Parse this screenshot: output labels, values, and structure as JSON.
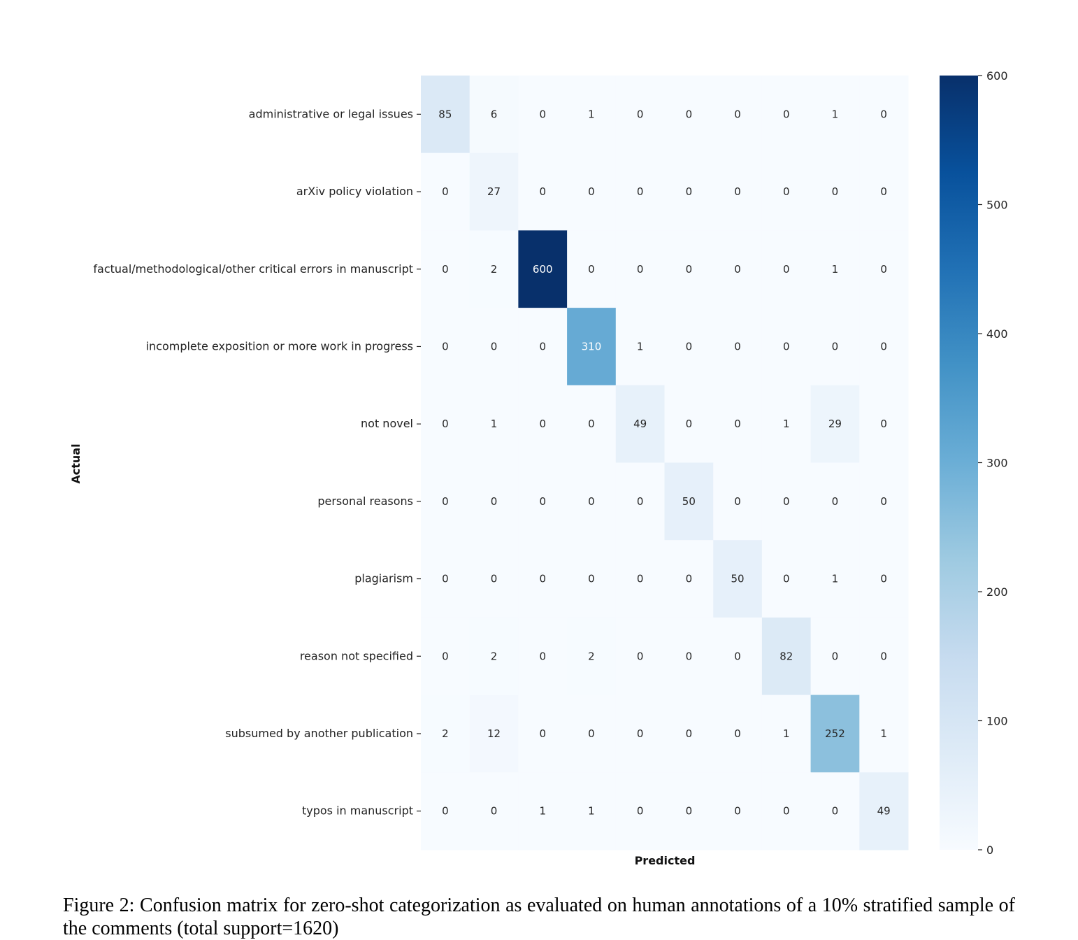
{
  "chart_data": {
    "type": "heatmap",
    "xlabel": "Predicted",
    "ylabel": "Actual",
    "row_labels": [
      "administrative or legal issues",
      "arXiv policy violation",
      "factual/methodological/other critical errors in manuscript",
      "incomplete exposition or more work in progress",
      "not novel",
      "personal reasons",
      "plagiarism",
      "reason not specified",
      "subsumed by another publication",
      "typos in manuscript"
    ],
    "values": [
      [
        85,
        6,
        0,
        1,
        0,
        0,
        0,
        0,
        1,
        0
      ],
      [
        0,
        27,
        0,
        0,
        0,
        0,
        0,
        0,
        0,
        0
      ],
      [
        0,
        2,
        600,
        0,
        0,
        0,
        0,
        0,
        1,
        0
      ],
      [
        0,
        0,
        0,
        310,
        1,
        0,
        0,
        0,
        0,
        0
      ],
      [
        0,
        1,
        0,
        0,
        49,
        0,
        0,
        1,
        29,
        0
      ],
      [
        0,
        0,
        0,
        0,
        0,
        50,
        0,
        0,
        0,
        0
      ],
      [
        0,
        0,
        0,
        0,
        0,
        0,
        50,
        0,
        1,
        0
      ],
      [
        0,
        2,
        0,
        2,
        0,
        0,
        0,
        82,
        0,
        0
      ],
      [
        2,
        12,
        0,
        0,
        0,
        0,
        0,
        1,
        252,
        1
      ],
      [
        0,
        0,
        1,
        1,
        0,
        0,
        0,
        0,
        0,
        49
      ]
    ],
    "colorbar": {
      "min": 0,
      "max": 600,
      "ticks": [
        0,
        100,
        200,
        300,
        400,
        500,
        600
      ],
      "colormap": "Blues",
      "color_low": "#f7fbff",
      "color_high": "#08306b"
    }
  },
  "caption": "Figure 2: Confusion matrix for zero-shot categorization as evaluated on human annotations of a 10% stratified sample of the comments (total support=1620)"
}
